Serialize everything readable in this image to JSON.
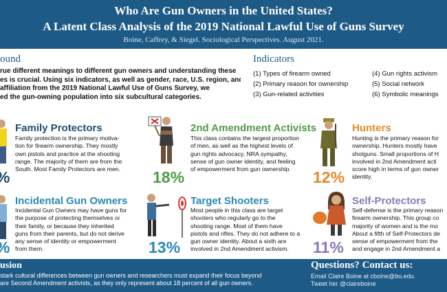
{
  "header": {
    "title1": "Who Are Gun Owners in the United States?",
    "title2": "A Latent Class Analysis of the 2019 National Lawful Use of Guns Survey",
    "subtitle": "Boine, Caffrey, & Siegel. Sociological Perspectives. August 2021."
  },
  "background": {
    "heading": "ound",
    "lines": [
      "rue different meanings to different gun owners and understanding these",
      "es is crucial. Using six indicators, as well as gender, race, U.S. region, and",
      "affiliation from the 2019 National Lawful Use of Guns Survey, we",
      "ed the gun-owning population into six subcultural categories."
    ]
  },
  "indicators": {
    "heading": "Indicators",
    "left": [
      "(1) Types of firearm owned",
      "(2) Primary reason for ownership",
      "(3) Gun-related activities"
    ],
    "right": [
      "(4) Gun rights activism",
      "(5) Social network",
      "(6) Symbolic meanings"
    ]
  },
  "profiles": {
    "family": {
      "title": "Family Protectors",
      "color": "#1e4f73",
      "percent": "%",
      "desc": [
        "Family protection is the primary motiva-",
        "tion for firearm ownership. They mostly",
        "own pistols and practice at the shooting",
        "range. The majority of them are from the",
        "South. Most Family Protectors are men."
      ]
    },
    "activists": {
      "title": "2nd Amendment Activists",
      "color": "#4f9a45",
      "percent": "18%",
      "desc": [
        "This class contains the largest proportion",
        "of men, as well as the highest levels of",
        "gun rights advocacy, NRA sympathy,",
        "sense of gun owner identity, and feeling",
        "of empowerment from gun ownership."
      ]
    },
    "hunters": {
      "title": "Hunters",
      "color": "#e38a2d",
      "percent": "12%",
      "desc": [
        "Hunting is the primary reason for",
        "ownership. Hunters mostly have",
        "shotguns. Small proportions of H",
        "involved in 2nd Amendment acti",
        "score high in terms of gun owner",
        "identity."
      ]
    },
    "incidental": {
      "title": "Incidental Gun Owners",
      "color": "#2a87b4",
      "percent": "%",
      "desc": [
        "Incidental Gun Owners may have guns for",
        "the purpose of protecting themselves or",
        "their family, or because they inherited",
        "guns from their parents, but do not derive",
        "any sense of identity or empowerment",
        "from them."
      ]
    },
    "target": {
      "title": "Target Shooters",
      "color": "#2a87b4",
      "percent": "13%",
      "desc": [
        "Most people in this class are target",
        "shooters who regularly go to the",
        "shooting range. Most of them have",
        "pistols and rifles. They do not adhere to a",
        "gun owner identity. About a sixth are",
        "involved in 2nd Amendment activism."
      ]
    },
    "self": {
      "title": "Self-Protectors",
      "color": "#8a78b8",
      "percent": "11%",
      "desc": [
        "Self-defense is the primary reason",
        "firearm ownership. This group co",
        "majority of women and is the mo",
        "About a fifth of Self-Protectors de",
        "sense of empowerment from the",
        "and engage in 2nd Amendment a"
      ]
    }
  },
  "footer": {
    "conclusion_heading": "usion",
    "conclusion_lines": [
      "stark cultural differences between gun owners and researchers must expand their focus beyond",
      "are Second Amendment activists, as they only represent about 18 percent of all gun owners."
    ],
    "questions_heading": "Questions? Contact us:",
    "email": "Email Claire Boine at cboine@bu.edu.",
    "twitter": "Tweet her @claireboine"
  }
}
